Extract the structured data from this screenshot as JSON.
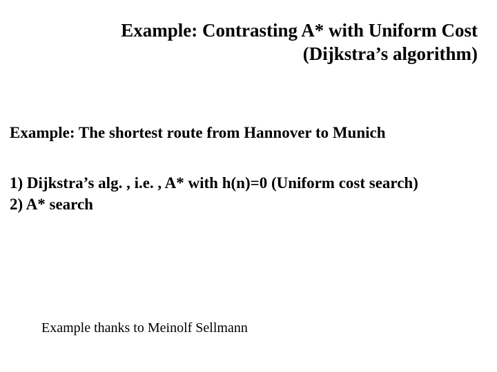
{
  "title": {
    "line1": "Example: Contrasting A* with Uniform Cost",
    "line2": "(Dijkstra’s algorithm)"
  },
  "subtitle": "Example: The shortest route from  Hannover to Munich",
  "list": {
    "item1": "1)   Dijkstra’s alg. , i.e. , A* with h(n)=0 (Uniform cost search)",
    "item2": "2)  A* search"
  },
  "credit": "Example thanks to Meinolf Sellmann",
  "colors": {
    "background": "#ffffff",
    "text": "#000000"
  },
  "typography": {
    "family": "Times New Roman",
    "title_fontsize_pt": 20,
    "body_fontsize_pt": 17,
    "credit_fontsize_pt": 15
  }
}
